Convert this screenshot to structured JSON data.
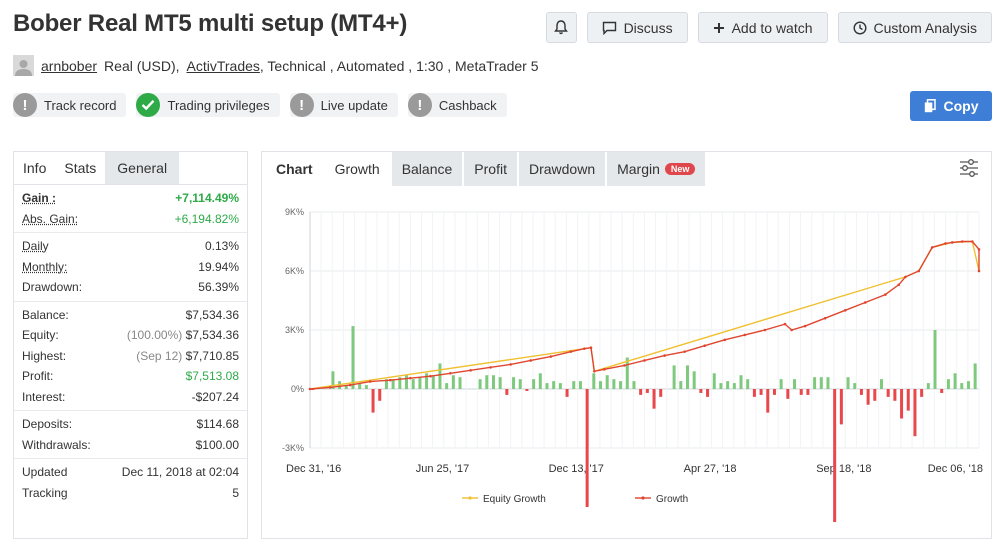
{
  "header": {
    "title": "Bober Real MT5 multi setup (MT4+)",
    "actions": {
      "discuss": "Discuss",
      "watch": "Add to watch",
      "custom": "Custom Analysis"
    }
  },
  "meta": {
    "user": "arnbober",
    "account": "Real (USD),",
    "broker": "ActivTrades",
    "rest": ", Technical , Automated , 1:30 , MetaTrader 5"
  },
  "badges": {
    "track": "Track record",
    "privileges": "Trading privileges",
    "live": "Live update",
    "cashback": "Cashback"
  },
  "copy_label": "Copy",
  "stats": {
    "tabs": [
      "Info",
      "Stats",
      "General"
    ],
    "gain_label": "Gain :",
    "gain": "+7,114.49%",
    "abs_gain_label": "Abs. Gain:",
    "abs_gain": "+6,194.82%",
    "daily_label": "Daily",
    "daily": "0.13%",
    "monthly_label": "Monthly:",
    "monthly": "19.94%",
    "drawdown_label": "Drawdown:",
    "drawdown": "56.39%",
    "balance_label": "Balance:",
    "balance": "$7,534.36",
    "equity_label": "Equity:",
    "equity_pct": "(100.00%)",
    "equity": "$7,534.36",
    "highest_label": "Highest:",
    "highest_date": "(Sep 12)",
    "highest": "$7,710.85",
    "profit_label": "Profit:",
    "profit": "$7,513.08",
    "interest_label": "Interest:",
    "interest": "-$207.24",
    "deposits_label": "Deposits:",
    "deposits": "$114.68",
    "withdrawals_label": "Withdrawals:",
    "withdrawals": "$100.00",
    "updated_label": "Updated",
    "updated": "Dec 11, 2018 at 02:04",
    "tracking_label": "Tracking",
    "tracking": "5"
  },
  "chart_tabs": {
    "chart": "Chart",
    "growth": "Growth",
    "balance": "Balance",
    "profit": "Profit",
    "drawdown": "Drawdown",
    "margin": "Margin",
    "new": "New"
  },
  "colors": {
    "accent": "#3f7ed6",
    "green": "#2eaa47",
    "bar_pos": "#7fc97f",
    "bar_neg": "#e8474c",
    "growth_line": "#e0462f",
    "equity_line": "#f0c030"
  },
  "chart_data": {
    "type": "line",
    "ylim": [
      -3000,
      9000
    ],
    "y_ticks": [
      -3000,
      0,
      3000,
      6000,
      9000
    ],
    "y_tick_labels": [
      "-3K%",
      "0%",
      "3K%",
      "6K%",
      "9K%"
    ],
    "x_ticks": [
      "Dec 31, '16",
      "Jun 25, '17",
      "Dec 13, '17",
      "Apr 27, '18",
      "Sep 18, '18",
      "Dec 06, '18"
    ],
    "x_tick_pos": [
      0.0,
      0.198,
      0.398,
      0.598,
      0.798,
      0.998
    ],
    "legend": [
      "Equity Growth",
      "Growth"
    ],
    "series": [
      {
        "name": "Growth",
        "points": [
          [
            0,
            0
          ],
          [
            0.03,
            80
          ],
          [
            0.06,
            200
          ],
          [
            0.09,
            380
          ],
          [
            0.12,
            450
          ],
          [
            0.15,
            550
          ],
          [
            0.18,
            650
          ],
          [
            0.21,
            800
          ],
          [
            0.24,
            950
          ],
          [
            0.27,
            1100
          ],
          [
            0.3,
            1250
          ],
          [
            0.33,
            1450
          ],
          [
            0.36,
            1650
          ],
          [
            0.39,
            1900
          ],
          [
            0.41,
            2050
          ],
          [
            0.42,
            2100
          ],
          [
            0.425,
            900
          ],
          [
            0.44,
            1000
          ],
          [
            0.47,
            1200
          ],
          [
            0.5,
            1450
          ],
          [
            0.53,
            1700
          ],
          [
            0.56,
            1900
          ],
          [
            0.59,
            2200
          ],
          [
            0.62,
            2500
          ],
          [
            0.65,
            2750
          ],
          [
            0.68,
            3000
          ],
          [
            0.71,
            3300
          ],
          [
            0.72,
            3000
          ],
          [
            0.74,
            3200
          ],
          [
            0.77,
            3600
          ],
          [
            0.8,
            4000
          ],
          [
            0.83,
            4400
          ],
          [
            0.86,
            4800
          ],
          [
            0.88,
            5300
          ],
          [
            0.89,
            5700
          ],
          [
            0.91,
            6000
          ],
          [
            0.93,
            7200
          ],
          [
            0.95,
            7400
          ],
          [
            0.96,
            7450
          ],
          [
            0.975,
            7500
          ],
          [
            0.99,
            7500
          ],
          [
            1.0,
            7100
          ],
          [
            1.0,
            6000
          ]
        ]
      },
      {
        "name": "Equity Growth",
        "points": [
          [
            0,
            0
          ],
          [
            0.42,
            2100
          ],
          [
            0.425,
            900
          ],
          [
            0.89,
            5700
          ],
          [
            0.91,
            6000
          ],
          [
            0.93,
            7200
          ],
          [
            0.96,
            7450
          ],
          [
            0.99,
            7500
          ],
          [
            1.0,
            6000
          ]
        ]
      }
    ],
    "bars": [
      [
        0.005,
        -50
      ],
      [
        0.035,
        900
      ],
      [
        0.045,
        400
      ],
      [
        0.055,
        200
      ],
      [
        0.065,
        3200
      ],
      [
        0.075,
        300
      ],
      [
        0.085,
        200
      ],
      [
        0.095,
        -1200
      ],
      [
        0.105,
        -600
      ],
      [
        0.115,
        500
      ],
      [
        0.125,
        500
      ],
      [
        0.135,
        600
      ],
      [
        0.145,
        700
      ],
      [
        0.155,
        500
      ],
      [
        0.165,
        600
      ],
      [
        0.175,
        800
      ],
      [
        0.185,
        700
      ],
      [
        0.195,
        1300
      ],
      [
        0.205,
        300
      ],
      [
        0.215,
        700
      ],
      [
        0.225,
        600
      ],
      [
        0.255,
        500
      ],
      [
        0.265,
        700
      ],
      [
        0.275,
        700
      ],
      [
        0.285,
        600
      ],
      [
        0.295,
        -300
      ],
      [
        0.305,
        600
      ],
      [
        0.315,
        500
      ],
      [
        0.325,
        -100
      ],
      [
        0.335,
        500
      ],
      [
        0.345,
        800
      ],
      [
        0.355,
        300
      ],
      [
        0.365,
        400
      ],
      [
        0.375,
        300
      ],
      [
        0.385,
        -400
      ],
      [
        0.395,
        400
      ],
      [
        0.405,
        400
      ],
      [
        0.415,
        -6000
      ],
      [
        0.425,
        800
      ],
      [
        0.435,
        400
      ],
      [
        0.445,
        700
      ],
      [
        0.455,
        500
      ],
      [
        0.465,
        400
      ],
      [
        0.475,
        1600
      ],
      [
        0.485,
        400
      ],
      [
        0.495,
        -300
      ],
      [
        0.505,
        -200
      ],
      [
        0.515,
        -1000
      ],
      [
        0.525,
        -400
      ],
      [
        0.545,
        1200
      ],
      [
        0.555,
        400
      ],
      [
        0.565,
        1200
      ],
      [
        0.575,
        900
      ],
      [
        0.585,
        -200
      ],
      [
        0.595,
        -400
      ],
      [
        0.605,
        800
      ],
      [
        0.615,
        300
      ],
      [
        0.625,
        400
      ],
      [
        0.635,
        300
      ],
      [
        0.645,
        700
      ],
      [
        0.655,
        500
      ],
      [
        0.665,
        -400
      ],
      [
        0.675,
        -300
      ],
      [
        0.685,
        -1200
      ],
      [
        0.695,
        -300
      ],
      [
        0.705,
        500
      ],
      [
        0.715,
        -500
      ],
      [
        0.725,
        500
      ],
      [
        0.735,
        -300
      ],
      [
        0.745,
        -300
      ],
      [
        0.755,
        600
      ],
      [
        0.765,
        600
      ],
      [
        0.775,
        600
      ],
      [
        0.785,
        -8000
      ],
      [
        0.795,
        -1800
      ],
      [
        0.805,
        600
      ],
      [
        0.815,
        300
      ],
      [
        0.825,
        -300
      ],
      [
        0.835,
        -800
      ],
      [
        0.845,
        -600
      ],
      [
        0.855,
        500
      ],
      [
        0.865,
        -400
      ],
      [
        0.875,
        -600
      ],
      [
        0.885,
        -1500
      ],
      [
        0.895,
        -1100
      ],
      [
        0.905,
        -2400
      ],
      [
        0.915,
        -400
      ],
      [
        0.925,
        300
      ],
      [
        0.935,
        3000
      ],
      [
        0.945,
        -200
      ],
      [
        0.955,
        500
      ],
      [
        0.965,
        800
      ],
      [
        0.975,
        300
      ],
      [
        0.985,
        400
      ],
      [
        0.995,
        1300
      ]
    ]
  }
}
